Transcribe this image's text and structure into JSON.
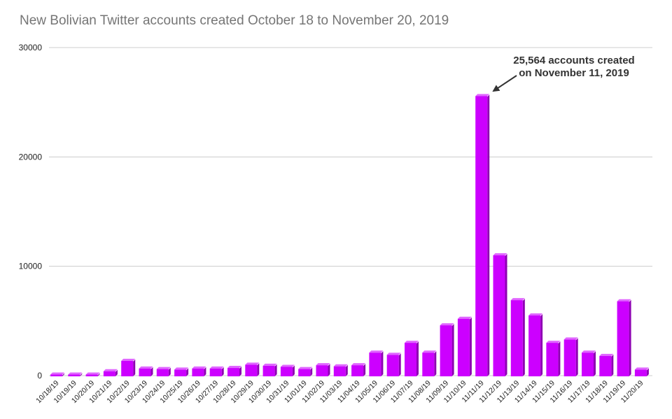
{
  "chart_data": {
    "type": "bar",
    "title": "New Bolivian Twitter accounts created October 18 to November 20, 2019",
    "xlabel": "",
    "ylabel": "",
    "ylim": [
      0,
      30000
    ],
    "yticks": [
      0,
      10000,
      20000,
      30000
    ],
    "ytick_labels": [
      "0",
      "10000",
      "20000",
      "30000"
    ],
    "grid": true,
    "bar_color": "#cc00ff",
    "bar_side_color": "#8e00b3",
    "bar_top_color": "#e066ff",
    "categories": [
      "10/18/19",
      "10/19/19",
      "10/20/19",
      "10/21/19",
      "10/22/19",
      "10/23/19",
      "10/24/19",
      "10/25/19",
      "10/26/19",
      "10/27/19",
      "10/28/19",
      "10/29/19",
      "10/30/19",
      "10/31/19",
      "11/01/19",
      "11/02/19",
      "11/03/19",
      "11/04/19",
      "11/05/19",
      "11/06/19",
      "11/07/19",
      "11/08/19",
      "11/09/19",
      "11/10/19",
      "11/11/19",
      "11/12/19",
      "11/13/19",
      "11/14/19",
      "11/15/19",
      "11/16/19",
      "11/17/19",
      "11/18/19",
      "11/19/19",
      "11/20/19"
    ],
    "values": [
      0,
      0,
      0,
      400,
      1350,
      650,
      600,
      550,
      650,
      650,
      700,
      1000,
      900,
      800,
      600,
      950,
      850,
      950,
      2100,
      1900,
      3000,
      2100,
      4600,
      5200,
      25564,
      11000,
      6900,
      5500,
      3000,
      3300,
      2100,
      1800,
      6800,
      550
    ],
    "annotation": {
      "line1": "25,564 accounts created",
      "line2": "on November 11, 2019",
      "target_category": "11/11/19"
    }
  }
}
